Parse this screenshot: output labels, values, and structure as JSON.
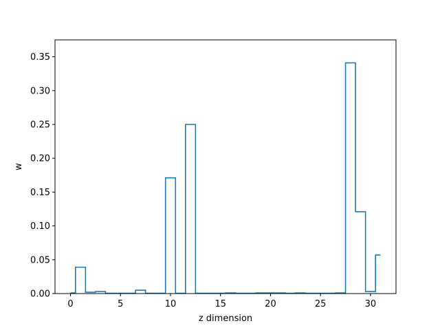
{
  "chart_data": {
    "type": "step",
    "title": "",
    "xlabel": "z dimension",
    "ylabel": "w",
    "xlim": [
      -1.55,
      32.55
    ],
    "ylim": [
      0,
      0.375
    ],
    "grid": false,
    "line_color": "#1f77b4",
    "step_where": "mid",
    "xticks": [
      0,
      5,
      10,
      15,
      20,
      25,
      30
    ],
    "yticks": [
      0.0,
      0.05,
      0.1,
      0.15,
      0.2,
      0.25,
      0.3,
      0.35
    ],
    "xtick_labels": [
      "0",
      "5",
      "10",
      "15",
      "20",
      "25",
      "30"
    ],
    "ytick_labels": [
      "0.00",
      "0.05",
      "0.10",
      "0.15",
      "0.20",
      "0.25",
      "0.30",
      "0.35"
    ],
    "x": [
      0,
      1,
      2,
      3,
      4,
      5,
      6,
      7,
      8,
      9,
      10,
      11,
      12,
      13,
      14,
      15,
      16,
      17,
      18,
      19,
      20,
      21,
      22,
      23,
      24,
      25,
      26,
      27,
      28,
      29,
      30,
      31
    ],
    "values": [
      0.001,
      0.039,
      0.002,
      0.003,
      0.0005,
      0.0005,
      0.0005,
      0.005,
      0.0005,
      0.0005,
      0.171,
      0.0005,
      0.25,
      0.0005,
      0.0005,
      0.0005,
      0.001,
      0.0005,
      0.0005,
      0.001,
      0.001,
      0.001,
      0.0005,
      0.001,
      0.0005,
      0.0005,
      0.0005,
      0.001,
      0.341,
      0.121,
      0.003,
      0.057
    ]
  }
}
